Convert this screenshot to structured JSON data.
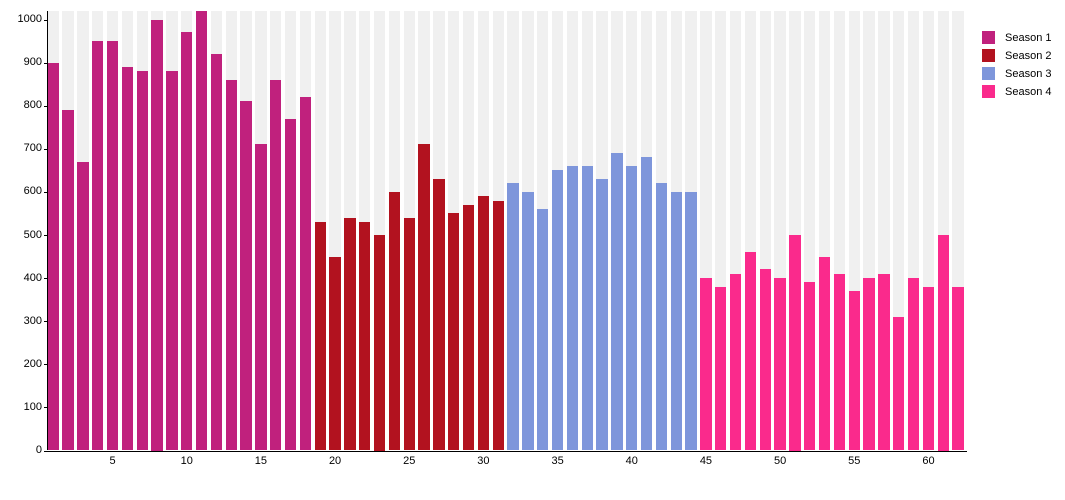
{
  "chart_data": {
    "type": "bar",
    "title": "",
    "xlabel": "",
    "ylabel": "",
    "x_axis": {
      "min": 1,
      "max": 62,
      "ticks": [
        5,
        10,
        15,
        20,
        25,
        30,
        35,
        40,
        45,
        50,
        55,
        60
      ]
    },
    "y_axis": {
      "min": 0,
      "max": 1020,
      "ticks": [
        0,
        100,
        200,
        300,
        400,
        500,
        600,
        700,
        800,
        900,
        1000
      ]
    },
    "grid": "vertical-background-stripes",
    "legend_position": "top-right",
    "series": [
      {
        "name": "Season 1",
        "color": "#C0217D",
        "episodes_start": 1,
        "values": [
          900,
          790,
          670,
          950,
          950,
          890,
          880,
          1000,
          880,
          970,
          1020,
          920,
          860,
          810,
          710,
          860,
          770,
          820
        ]
      },
      {
        "name": "Season 2",
        "color": "#B2121F",
        "episodes_start": 19,
        "values": [
          530,
          450,
          540,
          530,
          500,
          600,
          540,
          710,
          630,
          550,
          570,
          590,
          580
        ]
      },
      {
        "name": "Season 3",
        "color": "#7E96DB",
        "episodes_start": 32,
        "values": [
          620,
          600,
          560,
          650,
          660,
          660,
          630,
          690,
          660,
          680,
          620,
          600,
          600
        ]
      },
      {
        "name": "Season 4",
        "color": "#FA2A8C",
        "episodes_start": 45,
        "values": [
          400,
          380,
          410,
          460,
          420,
          400,
          500,
          390,
          450,
          410,
          370,
          400,
          410,
          310,
          400,
          380,
          500,
          380
        ]
      }
    ],
    "style": {
      "stripe_color": "#f0f0f0",
      "axis_color": "#000000",
      "background": "#ffffff"
    }
  },
  "legend": {
    "items": [
      {
        "label": "Season 1",
        "color": "#C0217D"
      },
      {
        "label": "Season 2",
        "color": "#B2121F"
      },
      {
        "label": "Season 3",
        "color": "#7E96DB"
      },
      {
        "label": "Season 4",
        "color": "#FA2A8C"
      }
    ]
  }
}
